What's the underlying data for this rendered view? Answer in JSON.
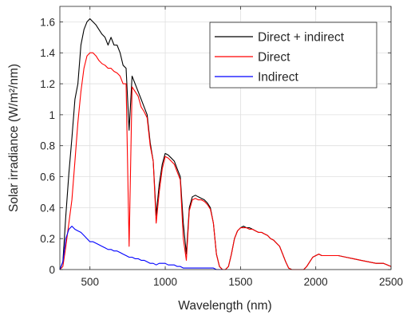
{
  "chart_data": {
    "type": "line",
    "title": "",
    "xlabel": "Wavelength (nm)",
    "ylabel": "Solar irradiance (W/m²/nm)",
    "xlim": [
      300,
      2500
    ],
    "ylim": [
      0,
      1.7
    ],
    "xticks": [
      500,
      1000,
      1500,
      2000,
      2500
    ],
    "xtick_labels": [
      "500",
      "1000",
      "1500",
      "2000",
      "2500"
    ],
    "yticks": [
      0,
      0.2,
      0.4,
      0.6,
      0.8,
      1,
      1.2,
      1.4,
      1.6
    ],
    "ytick_labels": [
      "0",
      "0.2",
      "0.4",
      "0.6",
      "0.8",
      "1",
      "1.2",
      "1.4",
      "1.6"
    ],
    "grid": true,
    "legend_position": "top-right",
    "series": [
      {
        "name": "Direct + indirect",
        "color": "#000000",
        "x": [
          300,
          320,
          340,
          360,
          380,
          400,
          420,
          440,
          460,
          480,
          500,
          520,
          540,
          560,
          580,
          600,
          620,
          640,
          660,
          680,
          700,
          720,
          740,
          760,
          780,
          800,
          820,
          840,
          860,
          880,
          900,
          920,
          940,
          960,
          980,
          1000,
          1020,
          1040,
          1060,
          1080,
          1100,
          1120,
          1140,
          1160,
          1180,
          1200,
          1220,
          1240,
          1260,
          1280,
          1300,
          1320,
          1340,
          1360,
          1380,
          1400,
          1420,
          1440,
          1460,
          1480,
          1500,
          1520,
          1540,
          1560,
          1580,
          1600,
          1620,
          1640,
          1660,
          1680,
          1700,
          1720,
          1740,
          1760,
          1780,
          1800,
          1820,
          1840,
          1860,
          1880,
          1900,
          1920,
          1940,
          1960,
          1980,
          2000,
          2020,
          2040,
          2060,
          2080,
          2100,
          2150,
          2200,
          2250,
          2300,
          2350,
          2400,
          2450,
          2500
        ],
        "y": [
          0.0,
          0.05,
          0.35,
          0.62,
          0.85,
          1.1,
          1.2,
          1.45,
          1.55,
          1.6,
          1.62,
          1.6,
          1.58,
          1.55,
          1.52,
          1.5,
          1.45,
          1.5,
          1.45,
          1.45,
          1.4,
          1.32,
          1.3,
          0.9,
          1.25,
          1.2,
          1.15,
          1.1,
          1.05,
          1.0,
          0.82,
          0.7,
          0.35,
          0.55,
          0.68,
          0.75,
          0.74,
          0.72,
          0.7,
          0.65,
          0.6,
          0.3,
          0.1,
          0.4,
          0.47,
          0.48,
          0.47,
          0.46,
          0.45,
          0.43,
          0.4,
          0.3,
          0.1,
          0.02,
          0.0,
          0.0,
          0.02,
          0.1,
          0.2,
          0.25,
          0.27,
          0.28,
          0.27,
          0.27,
          0.26,
          0.25,
          0.24,
          0.24,
          0.23,
          0.22,
          0.2,
          0.19,
          0.17,
          0.15,
          0.1,
          0.05,
          0.01,
          0.0,
          0.0,
          0.0,
          0.0,
          0.0,
          0.02,
          0.05,
          0.08,
          0.09,
          0.1,
          0.09,
          0.09,
          0.09,
          0.09,
          0.09,
          0.08,
          0.07,
          0.06,
          0.05,
          0.04,
          0.04,
          0.02
        ]
      },
      {
        "name": "Direct",
        "color": "#ff0000",
        "x": [
          300,
          320,
          340,
          360,
          380,
          400,
          420,
          440,
          460,
          480,
          500,
          520,
          540,
          560,
          580,
          600,
          620,
          640,
          660,
          680,
          700,
          720,
          740,
          760,
          780,
          800,
          820,
          840,
          860,
          880,
          900,
          920,
          940,
          960,
          980,
          1000,
          1020,
          1040,
          1060,
          1080,
          1100,
          1120,
          1140,
          1160,
          1180,
          1200,
          1220,
          1240,
          1260,
          1280,
          1300,
          1320,
          1340,
          1360,
          1380,
          1400,
          1420,
          1440,
          1460,
          1480,
          1500,
          1520,
          1540,
          1560,
          1580,
          1600,
          1620,
          1640,
          1660,
          1680,
          1700,
          1720,
          1740,
          1760,
          1780,
          1800,
          1820,
          1840,
          1860,
          1880,
          1900,
          1920,
          1940,
          1960,
          1980,
          2000,
          2020,
          2040,
          2060,
          2080,
          2100,
          2150,
          2200,
          2250,
          2300,
          2350,
          2400,
          2450,
          2500
        ],
        "y": [
          0.0,
          0.02,
          0.15,
          0.3,
          0.45,
          0.7,
          0.95,
          1.15,
          1.3,
          1.38,
          1.4,
          1.4,
          1.38,
          1.35,
          1.33,
          1.32,
          1.3,
          1.3,
          1.28,
          1.27,
          1.25,
          1.2,
          1.2,
          0.15,
          1.18,
          1.15,
          1.12,
          1.05,
          1.02,
          0.98,
          0.8,
          0.7,
          0.3,
          0.5,
          0.65,
          0.73,
          0.72,
          0.7,
          0.68,
          0.63,
          0.58,
          0.2,
          0.06,
          0.38,
          0.45,
          0.46,
          0.45,
          0.45,
          0.44,
          0.42,
          0.39,
          0.3,
          0.1,
          0.02,
          0.0,
          0.0,
          0.02,
          0.1,
          0.2,
          0.25,
          0.27,
          0.27,
          0.27,
          0.26,
          0.26,
          0.25,
          0.24,
          0.24,
          0.23,
          0.22,
          0.2,
          0.19,
          0.17,
          0.15,
          0.1,
          0.05,
          0.01,
          0.0,
          0.0,
          0.0,
          0.0,
          0.0,
          0.02,
          0.05,
          0.08,
          0.09,
          0.1,
          0.09,
          0.09,
          0.09,
          0.09,
          0.09,
          0.08,
          0.07,
          0.06,
          0.05,
          0.04,
          0.04,
          0.02
        ]
      },
      {
        "name": "Indirect",
        "color": "#0000ff",
        "x": [
          300,
          320,
          340,
          360,
          380,
          400,
          420,
          440,
          460,
          480,
          500,
          520,
          540,
          560,
          580,
          600,
          620,
          640,
          660,
          680,
          700,
          720,
          740,
          760,
          780,
          800,
          820,
          840,
          860,
          880,
          900,
          920,
          940,
          960,
          980,
          1000,
          1020,
          1040,
          1060,
          1080,
          1100,
          1120,
          1140,
          1160,
          1180,
          1200,
          1220,
          1240,
          1260,
          1280,
          1300,
          1320,
          1340,
          1360,
          1380
        ],
        "y": [
          0.0,
          0.05,
          0.2,
          0.26,
          0.28,
          0.26,
          0.25,
          0.24,
          0.22,
          0.2,
          0.18,
          0.18,
          0.17,
          0.16,
          0.15,
          0.14,
          0.13,
          0.13,
          0.12,
          0.12,
          0.11,
          0.1,
          0.09,
          0.08,
          0.08,
          0.07,
          0.07,
          0.06,
          0.06,
          0.05,
          0.04,
          0.04,
          0.03,
          0.04,
          0.04,
          0.04,
          0.03,
          0.03,
          0.03,
          0.02,
          0.02,
          0.01,
          0.01,
          0.01,
          0.01,
          0.01,
          0.01,
          0.01,
          0.01,
          0.01,
          0.01,
          0.01,
          0.0,
          0.0,
          0.0
        ]
      }
    ]
  }
}
